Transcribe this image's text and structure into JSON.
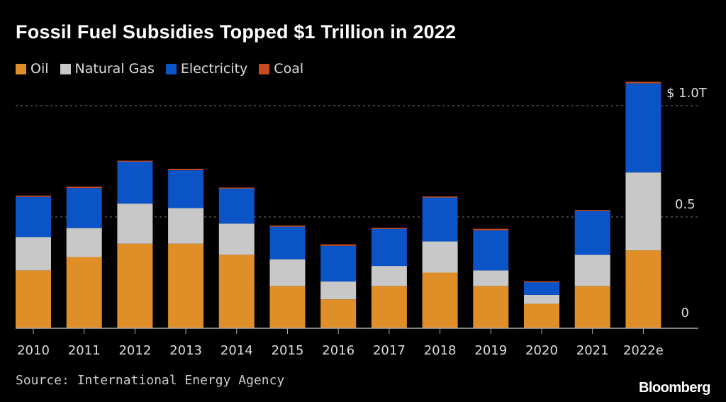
{
  "chart_data": {
    "type": "bar",
    "stacked": true,
    "title": "Fossil Fuel Subsidies Topped $1 Trillion in 2022",
    "xlabel": "",
    "ylabel": "",
    "ylim": [
      0,
      1.1
    ],
    "yticks": [
      {
        "value": 0,
        "label": "0"
      },
      {
        "value": 0.5,
        "label": "0.5"
      },
      {
        "value": 1.0,
        "label": "$ 1.0T"
      }
    ],
    "grid": true,
    "legend_position": "top-left",
    "categories": [
      "2010",
      "2011",
      "2012",
      "2013",
      "2014",
      "2015",
      "2016",
      "2017",
      "2018",
      "2019",
      "2020",
      "2021",
      "2022e"
    ],
    "series": [
      {
        "name": "Oil",
        "color": "#e08e28",
        "values": [
          0.26,
          0.32,
          0.38,
          0.38,
          0.33,
          0.19,
          0.13,
          0.19,
          0.25,
          0.19,
          0.11,
          0.19,
          0.35
        ]
      },
      {
        "name": "Natural Gas",
        "color": "#c8c8c8",
        "values": [
          0.15,
          0.13,
          0.18,
          0.16,
          0.14,
          0.12,
          0.08,
          0.09,
          0.14,
          0.07,
          0.04,
          0.14,
          0.35
        ]
      },
      {
        "name": "Electricity",
        "color": "#0a54c8",
        "values": [
          0.18,
          0.18,
          0.19,
          0.17,
          0.16,
          0.15,
          0.16,
          0.17,
          0.2,
          0.18,
          0.06,
          0.2,
          0.4
        ]
      },
      {
        "name": "Coal",
        "color": "#c84a1e",
        "values": [
          0.006,
          0.006,
          0.003,
          0.006,
          0.002,
          0.001,
          0.007,
          0.001,
          0.002,
          0.007,
          0.001,
          0.001,
          0.007
        ]
      }
    ]
  },
  "source": "Source: International Energy Agency",
  "brand": "Bloomberg"
}
